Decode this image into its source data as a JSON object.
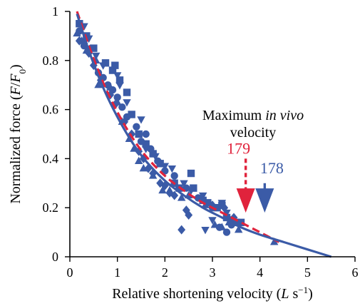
{
  "chart_data": {
    "type": "scatter",
    "xlabel": "Relative shortening velocity (L s⁻¹)",
    "ylabel": "Normalized force (F/F₀)",
    "xlim": [
      0,
      6
    ],
    "ylim": [
      0,
      1
    ],
    "xticks": [
      "0",
      "1",
      "2",
      "3",
      "4",
      "5",
      "6"
    ],
    "yticks": [
      "0",
      "0.2",
      "0.4",
      "0.6",
      "0.8",
      "1"
    ],
    "annotation": {
      "line1_prefix": "Maximum ",
      "line1_italic": "in vivo",
      "line2": "velocity"
    },
    "arrow_labels": [
      {
        "label": "179",
        "x": 3.7,
        "color": "#e0233c",
        "style": "dashed"
      },
      {
        "label": "178",
        "x": 4.1,
        "color": "#3b5ba7",
        "style": "solid"
      }
    ],
    "fit_curves": [
      {
        "label": "179",
        "color": "#e0233c",
        "style": "dashed",
        "x": [
          0.15,
          0.4,
          0.7,
          1.0,
          1.3,
          1.6,
          2.0,
          2.4,
          2.8,
          3.2,
          3.6,
          4.0,
          4.4
        ],
        "y": [
          1.0,
          0.86,
          0.71,
          0.59,
          0.49,
          0.41,
          0.33,
          0.27,
          0.22,
          0.18,
          0.14,
          0.1,
          0.06
        ]
      },
      {
        "label": "178",
        "color": "#3b5ba7",
        "style": "solid",
        "x": [
          0.15,
          0.4,
          0.7,
          1.0,
          1.3,
          1.6,
          2.0,
          2.4,
          2.8,
          3.2,
          3.6,
          4.0,
          4.5,
          5.0,
          5.5
        ],
        "y": [
          0.99,
          0.84,
          0.69,
          0.57,
          0.47,
          0.39,
          0.31,
          0.25,
          0.2,
          0.16,
          0.12,
          0.09,
          0.06,
          0.03,
          0.0
        ]
      }
    ],
    "series": [
      {
        "marker": "square",
        "color": "#3b5ba7",
        "points": [
          [
            0.2,
            0.95
          ],
          [
            0.35,
            0.9
          ],
          [
            0.5,
            0.85
          ],
          [
            0.75,
            0.79
          ],
          [
            0.9,
            0.76
          ],
          [
            0.95,
            0.78
          ],
          [
            1.05,
            0.72
          ],
          [
            1.2,
            0.67
          ],
          [
            1.3,
            0.58
          ],
          [
            1.45,
            0.5
          ],
          [
            1.6,
            0.46
          ],
          [
            1.75,
            0.42
          ],
          [
            1.9,
            0.38
          ],
          [
            2.2,
            0.3
          ],
          [
            2.3,
            0.28
          ],
          [
            2.55,
            0.34
          ],
          [
            2.6,
            0.28
          ],
          [
            2.8,
            0.23
          ],
          [
            2.9,
            0.22
          ],
          [
            3.1,
            0.2
          ],
          [
            3.2,
            0.21
          ],
          [
            3.3,
            0.16
          ],
          [
            3.4,
            0.15
          ],
          [
            3.5,
            0.14
          ],
          [
            3.6,
            0.14
          ]
        ]
      },
      {
        "marker": "circle",
        "color": "#3b5ba7",
        "points": [
          [
            0.2,
            0.92
          ],
          [
            0.3,
            0.86
          ],
          [
            0.45,
            0.85
          ],
          [
            0.6,
            0.75
          ],
          [
            0.7,
            0.73
          ],
          [
            0.8,
            0.7
          ],
          [
            0.9,
            0.68
          ],
          [
            1.0,
            0.65
          ],
          [
            1.1,
            0.61
          ],
          [
            1.2,
            0.57
          ],
          [
            1.4,
            0.53
          ],
          [
            1.5,
            0.47
          ],
          [
            1.6,
            0.5
          ],
          [
            1.7,
            0.44
          ],
          [
            1.85,
            0.39
          ],
          [
            2.0,
            0.35
          ],
          [
            2.2,
            0.33
          ],
          [
            2.45,
            0.28
          ],
          [
            2.7,
            0.24
          ],
          [
            3.0,
            0.2
          ],
          [
            3.15,
            0.12
          ],
          [
            3.3,
            0.1
          ],
          [
            3.4,
            0.13
          ]
        ]
      },
      {
        "marker": "triangle-up",
        "color": "#3b5ba7",
        "points": [
          [
            0.15,
            0.91
          ],
          [
            0.25,
            0.88
          ],
          [
            0.35,
            0.84
          ],
          [
            0.55,
            0.8
          ],
          [
            0.6,
            0.7
          ],
          [
            0.85,
            0.69
          ],
          [
            1.0,
            0.63
          ],
          [
            1.1,
            0.55
          ],
          [
            1.25,
            0.48
          ],
          [
            1.35,
            0.44
          ],
          [
            1.45,
            0.39
          ],
          [
            1.55,
            0.36
          ],
          [
            1.75,
            0.33
          ],
          [
            1.95,
            0.27
          ],
          [
            2.1,
            0.27
          ],
          [
            2.35,
            0.24
          ],
          [
            2.5,
            0.25
          ],
          [
            2.85,
            0.21
          ],
          [
            3.05,
            0.13
          ],
          [
            3.2,
            0.12
          ],
          [
            3.35,
            0.14
          ],
          [
            3.55,
            0.11
          ],
          [
            4.3,
            0.06
          ]
        ]
      },
      {
        "marker": "triangle-down",
        "color": "#3b5ba7",
        "points": [
          [
            0.3,
            0.94
          ],
          [
            0.4,
            0.89
          ],
          [
            0.55,
            0.82
          ],
          [
            0.7,
            0.78
          ],
          [
            1.0,
            0.74
          ],
          [
            1.05,
            0.7
          ],
          [
            1.2,
            0.63
          ],
          [
            1.5,
            0.56
          ],
          [
            1.6,
            0.44
          ],
          [
            1.8,
            0.41
          ],
          [
            2.0,
            0.37
          ],
          [
            2.15,
            0.36
          ],
          [
            2.4,
            0.3
          ],
          [
            2.55,
            0.27
          ],
          [
            2.8,
            0.25
          ],
          [
            2.85,
            0.11
          ],
          [
            3.0,
            0.15
          ],
          [
            3.2,
            0.22
          ],
          [
            3.3,
            0.18
          ]
        ]
      },
      {
        "marker": "diamond",
        "color": "#3b5ba7",
        "points": [
          [
            0.2,
            0.88
          ],
          [
            0.3,
            0.87
          ],
          [
            0.4,
            0.83
          ],
          [
            0.5,
            0.78
          ],
          [
            0.65,
            0.72
          ],
          [
            0.85,
            0.66
          ],
          [
            0.95,
            0.62
          ],
          [
            1.15,
            0.55
          ],
          [
            1.3,
            0.5
          ],
          [
            1.45,
            0.43
          ],
          [
            1.55,
            0.4
          ],
          [
            1.65,
            0.36
          ],
          [
            1.75,
            0.34
          ],
          [
            1.9,
            0.3
          ],
          [
            2.0,
            0.29
          ],
          [
            2.1,
            0.26
          ],
          [
            2.2,
            0.25
          ],
          [
            2.45,
            0.19
          ],
          [
            2.5,
            0.17
          ],
          [
            2.35,
            0.11
          ],
          [
            3.0,
            0.21
          ],
          [
            3.25,
            0.2
          ],
          [
            3.45,
            0.16
          ]
        ]
      }
    ]
  }
}
